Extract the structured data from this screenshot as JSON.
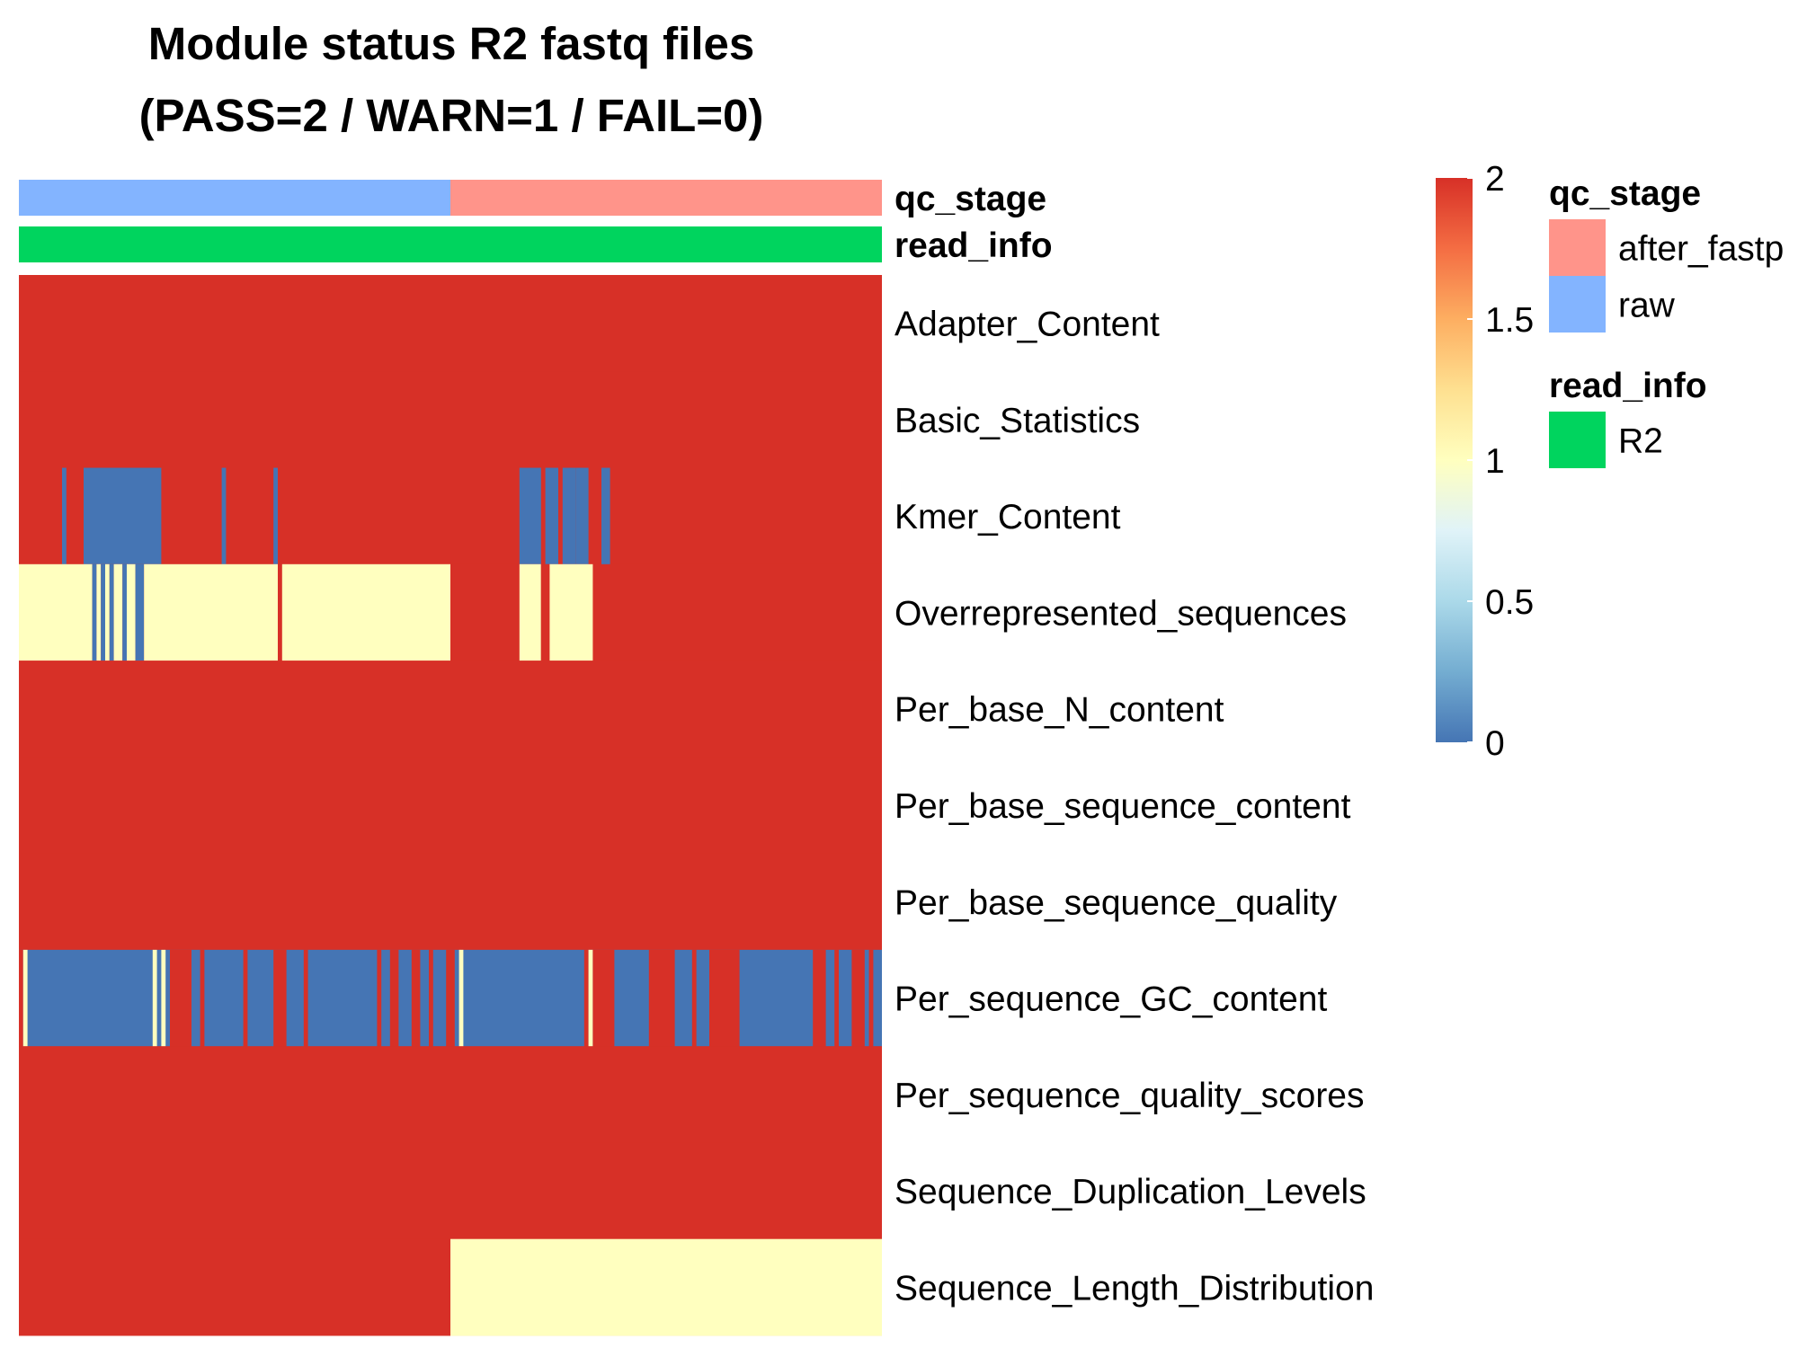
{
  "chart_data": {
    "type": "heatmap",
    "title": [
      "Module status R2 fastq files",
      "(PASS=2 / WARN=1 / FAIL=0)"
    ],
    "n_columns": 200,
    "column_annotations": [
      {
        "name": "qc_stage",
        "columns": [
          [
            0,
            100,
            "raw"
          ],
          [
            100,
            200,
            "after_fastp"
          ]
        ]
      },
      {
        "name": "read_info",
        "columns": [
          [
            0,
            200,
            "R2"
          ]
        ]
      }
    ],
    "rows": [
      {
        "label": "Adapter_Content",
        "base": 2,
        "segments": []
      },
      {
        "label": "Basic_Statistics",
        "base": 2,
        "segments": []
      },
      {
        "label": "Kmer_Content",
        "base": 2,
        "segments": [
          [
            10,
            11,
            0
          ],
          [
            15,
            33,
            0
          ],
          [
            47,
            48,
            0
          ],
          [
            59,
            60,
            0
          ],
          [
            116,
            121,
            0
          ],
          [
            122,
            125,
            0
          ],
          [
            126,
            129,
            0
          ],
          [
            129,
            132,
            0
          ],
          [
            135,
            137,
            0
          ]
        ]
      },
      {
        "label": "Overrepresented_sequences",
        "base": 2,
        "segments": [
          [
            0,
            17,
            1
          ],
          [
            17,
            18,
            0
          ],
          [
            18,
            19,
            1
          ],
          [
            19,
            20,
            0
          ],
          [
            20,
            21,
            1
          ],
          [
            21,
            22,
            0
          ],
          [
            22,
            24,
            1
          ],
          [
            24,
            25,
            0
          ],
          [
            25,
            27,
            1
          ],
          [
            27,
            29,
            0
          ],
          [
            29,
            60,
            1
          ],
          [
            60,
            61,
            2
          ],
          [
            61,
            100,
            1
          ],
          [
            116,
            121,
            1
          ],
          [
            121,
            123,
            2
          ],
          [
            123,
            133,
            1
          ]
        ]
      },
      {
        "label": "Per_base_N_content",
        "base": 2,
        "segments": []
      },
      {
        "label": "Per_base_sequence_content",
        "base": 2,
        "segments": []
      },
      {
        "label": "Per_base_sequence_quality",
        "base": 2,
        "segments": []
      },
      {
        "label": "Per_sequence_GC_content",
        "base": 0,
        "segments": [
          [
            0,
            1,
            2
          ],
          [
            1,
            2,
            1
          ],
          [
            31,
            32,
            1
          ],
          [
            33,
            34,
            1
          ],
          [
            35,
            40,
            2
          ],
          [
            42,
            43,
            2
          ],
          [
            52,
            53,
            2
          ],
          [
            59,
            62,
            2
          ],
          [
            66,
            67,
            2
          ],
          [
            83,
            84,
            2
          ],
          [
            86,
            88,
            2
          ],
          [
            91,
            93,
            2
          ],
          [
            95,
            96,
            2
          ],
          [
            99,
            101,
            2
          ],
          [
            102,
            103,
            1
          ],
          [
            131,
            132,
            2
          ],
          [
            132,
            133,
            1
          ],
          [
            133,
            138,
            2
          ],
          [
            146,
            152,
            2
          ],
          [
            156,
            157,
            2
          ],
          [
            160,
            167,
            2
          ],
          [
            184,
            187,
            2
          ],
          [
            189,
            190,
            2
          ],
          [
            193,
            196,
            2
          ],
          [
            197,
            198,
            2
          ]
        ]
      },
      {
        "label": "Per_sequence_quality_scores",
        "base": 2,
        "segments": []
      },
      {
        "label": "Sequence_Duplication_Levels",
        "base": 2,
        "segments": []
      },
      {
        "label": "Sequence_Length_Distribution",
        "base": 2,
        "segments": [
          [
            100,
            200,
            1
          ]
        ]
      }
    ],
    "value_range": [
      0,
      2
    ],
    "colorbar": {
      "ticks": [
        "0",
        "0.5",
        "1",
        "1.5",
        "2"
      ],
      "colors": [
        "#4575b4",
        "#74add1",
        "#abd9e9",
        "#e0f3f8",
        "#ffffbf",
        "#fee090",
        "#fdae61",
        "#f46d43",
        "#d73027"
      ]
    },
    "legends": [
      {
        "title": "qc_stage",
        "items": [
          {
            "label": "after_fastp",
            "color": "#ff948a"
          },
          {
            "label": "raw",
            "color": "#83b4ff"
          }
        ]
      },
      {
        "title": "read_info",
        "items": [
          {
            "label": "R2",
            "color": "#00d45e"
          }
        ]
      }
    ]
  }
}
